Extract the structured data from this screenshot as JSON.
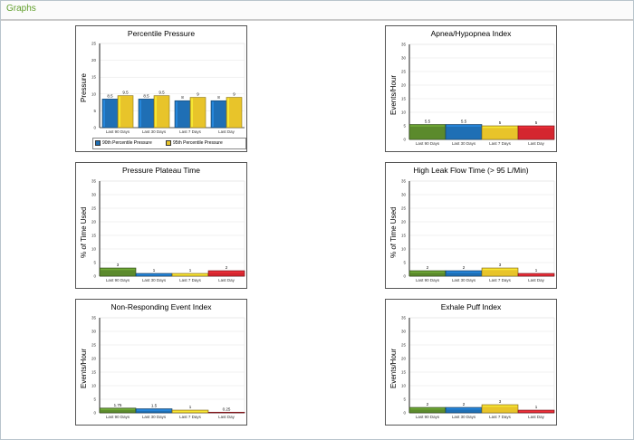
{
  "header": {
    "title": "Graphs"
  },
  "colors": {
    "blue": "#1f6fb5",
    "yellow": "#e8c42a",
    "green": "#5b8a2c",
    "red": "#d4262f"
  },
  "panels": [
    {
      "title": "Percentile Pressure",
      "ylabel": "Pressure",
      "chart_data": {
        "type": "bar",
        "categories": [
          "Last 90 Days",
          "Last 30 Days",
          "Last 7 Days",
          "Last Day"
        ],
        "series": [
          {
            "name": "90th Percentile Pressure",
            "values": [
              8.5,
              8.5,
              8,
              8
            ],
            "labels": [
              "8.5",
              "8.5",
              "8",
              "8"
            ]
          },
          {
            "name": "95th Percentile Pressure",
            "values": [
              9.5,
              9.5,
              9,
              9
            ],
            "labels": [
              "9.5",
              "9.5",
              "9",
              "9"
            ]
          }
        ],
        "ylim": [
          0,
          25
        ],
        "yticks": [
          "0",
          "5",
          "10",
          "15",
          "20",
          "25"
        ]
      },
      "legend": [
        "90th Percentile Pressure",
        "95th Percentile Pressure"
      ]
    },
    {
      "title": "Apnea/Hypopnea Index",
      "ylabel": "Events/Hour",
      "chart_data": {
        "type": "bar",
        "categories": [
          "Last 90 Days",
          "Last 30 Days",
          "Last 7 Days",
          "Last Day"
        ],
        "values": [
          5.5,
          5.5,
          5,
          5
        ],
        "labels": [
          "5.5",
          "5.5",
          "5",
          "5"
        ],
        "ylim": [
          0,
          35
        ],
        "yticks": [
          "0",
          "5",
          "10",
          "15",
          "20",
          "25",
          "30",
          "35"
        ]
      }
    },
    {
      "title": "Pressure Plateau Time",
      "ylabel": "% of Time Used",
      "chart_data": {
        "type": "bar",
        "categories": [
          "Last 90 Days",
          "Last 30 Days",
          "Last 7 Days",
          "Last Day"
        ],
        "values": [
          3,
          1,
          1,
          2
        ],
        "labels": [
          "3",
          "1",
          "1",
          "2"
        ],
        "ylim": [
          0,
          35
        ],
        "yticks": [
          "0",
          "5",
          "10",
          "15",
          "20",
          "25",
          "30",
          "35"
        ]
      }
    },
    {
      "title": "High Leak Flow Time (> 95 L/Min)",
      "ylabel": "% of Time Used",
      "chart_data": {
        "type": "bar",
        "categories": [
          "Last 90 Days",
          "Last 30 Days",
          "Last 7 Days",
          "Last Day"
        ],
        "values": [
          2,
          2,
          3,
          1
        ],
        "labels": [
          "2",
          "2",
          "3",
          "1"
        ],
        "ylim": [
          0,
          35
        ],
        "yticks": [
          "0",
          "5",
          "10",
          "15",
          "20",
          "25",
          "30",
          "35"
        ]
      }
    },
    {
      "title": "Non-Responding Event Index",
      "ylabel": "Events/Hour",
      "chart_data": {
        "type": "bar",
        "categories": [
          "Last 90 Days",
          "Last 30 Days",
          "Last 7 Days",
          "Last Day"
        ],
        "values": [
          1.75,
          1.5,
          1,
          0.25
        ],
        "labels": [
          "1.75",
          "1.5",
          "1",
          "0.25"
        ],
        "ylim": [
          0,
          35
        ],
        "yticks": [
          "0",
          "5",
          "10",
          "15",
          "20",
          "25",
          "30",
          "35"
        ]
      }
    },
    {
      "title": "Exhale Puff Index",
      "ylabel": "Events/Hour",
      "chart_data": {
        "type": "bar",
        "categories": [
          "Last 90 Days",
          "Last 30 Days",
          "Last 7 Days",
          "Last Day"
        ],
        "values": [
          2,
          2,
          3,
          1
        ],
        "labels": [
          "2",
          "2",
          "3",
          "1"
        ],
        "ylim": [
          0,
          35
        ],
        "yticks": [
          "0",
          "5",
          "10",
          "15",
          "20",
          "25",
          "30",
          "35"
        ]
      }
    }
  ]
}
